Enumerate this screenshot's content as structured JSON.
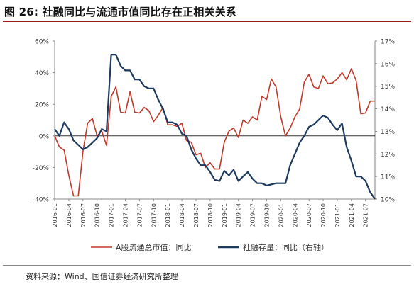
{
  "figure": {
    "title": "图 26: 社融同比与流通市值同比存在正相关关系",
    "source": "资料来源：Wind、国信证券经济研究所整理"
  },
  "colors": {
    "series_a": "#c0392b",
    "series_b": "#1f3a5f",
    "title_rule": "#9a1c1c",
    "axis": "#888888"
  },
  "chart_data": {
    "type": "line",
    "x": [
      "2016-01",
      "2016-02",
      "2016-03",
      "2016-04",
      "2016-05",
      "2016-06",
      "2016-07",
      "2016-08",
      "2016-09",
      "2016-10",
      "2016-11",
      "2016-12",
      "2017-01",
      "2017-02",
      "2017-03",
      "2017-04",
      "2017-05",
      "2017-06",
      "2017-07",
      "2017-08",
      "2017-09",
      "2017-10",
      "2017-11",
      "2017-12",
      "2018-01",
      "2018-02",
      "2018-03",
      "2018-04",
      "2018-05",
      "2018-06",
      "2018-07",
      "2018-08",
      "2018-09",
      "2018-10",
      "2018-11",
      "2018-12",
      "2019-01",
      "2019-02",
      "2019-03",
      "2019-04",
      "2019-05",
      "2019-06",
      "2019-07",
      "2019-08",
      "2019-09",
      "2019-10",
      "2019-11",
      "2019-12",
      "2020-01",
      "2020-02",
      "2020-03",
      "2020-04",
      "2020-05",
      "2020-06",
      "2020-07",
      "2020-08",
      "2020-09",
      "2020-10",
      "2020-11",
      "2020-12",
      "2021-01",
      "2021-02",
      "2021-03",
      "2021-04",
      "2021-05",
      "2021-06",
      "2021-07",
      "2021-08",
      "2021-09"
    ],
    "x_tick_labels": [
      "2016-01",
      "2016-04",
      "2016-07",
      "2016-10",
      "2017-01",
      "2017-04",
      "2017-07",
      "2017-10",
      "2018-01",
      "2018-04",
      "2018-07",
      "2018-10",
      "2019-01",
      "2019-04",
      "2019-07",
      "2019-10",
      "2020-01",
      "2020-04",
      "2020-07",
      "2020-10",
      "2021-01",
      "2021-04",
      "2021-07"
    ],
    "y_left": {
      "min": -40,
      "max": 60,
      "ticks": [
        "60%",
        "40%",
        "20%",
        "0%",
        "-20%",
        "-40%"
      ]
    },
    "y_right": {
      "min": 10,
      "max": 17,
      "ticks": [
        "17%",
        "16%",
        "15%",
        "14%",
        "13%",
        "12%",
        "11%",
        "10%"
      ]
    },
    "series": [
      {
        "name": "A股流通总市值：同比",
        "axis": "left",
        "values": [
          0,
          -7,
          -9,
          -25,
          -38,
          -38,
          -10,
          8,
          11,
          0,
          3,
          -6,
          25,
          31,
          15,
          14.5,
          28,
          15,
          14.5,
          18,
          16,
          9,
          13,
          18,
          7,
          7,
          6,
          8,
          -3,
          -4,
          -12,
          -11,
          -20,
          -17,
          -21,
          -21,
          -4,
          3,
          5,
          -1,
          10,
          8,
          12,
          10,
          25,
          23,
          36,
          31,
          12,
          0,
          5,
          12,
          17,
          34,
          39,
          31,
          30,
          38,
          33,
          33.5,
          36,
          40,
          35.5,
          42.5,
          35,
          14,
          14.5,
          22,
          22
        ]
      },
      {
        "name": "社融存量：同比（右轴）",
        "axis": "right",
        "values": [
          13.1,
          12.8,
          13.4,
          13.1,
          12.6,
          12.4,
          12.2,
          12.3,
          12.5,
          12.7,
          13.1,
          13.0,
          16.4,
          16.4,
          15.9,
          15.7,
          15.7,
          15.3,
          15.3,
          15.0,
          14.9,
          14.9,
          14.4,
          14.0,
          13.4,
          13.4,
          13.3,
          12.9,
          12.8,
          12.2,
          11.8,
          11.5,
          11.5,
          11.2,
          10.85,
          10.8,
          11.25,
          11.05,
          11.3,
          10.8,
          11.0,
          11.2,
          10.9,
          10.7,
          10.7,
          10.6,
          10.65,
          10.7,
          10.7,
          10.7,
          11.5,
          12.0,
          12.5,
          12.8,
          13.2,
          13.3,
          13.5,
          13.7,
          13.6,
          13.3,
          13.05,
          13.35,
          12.3,
          11.7,
          11.0,
          11.0,
          10.8,
          10.3,
          10.0
        ]
      }
    ],
    "legend_position": "bottom",
    "grid": false
  }
}
